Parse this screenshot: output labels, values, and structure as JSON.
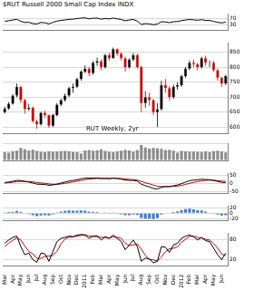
{
  "chart_data": [
    {
      "type": "line",
      "title": "$RUT Russell 2000 Small Cap Index INDX",
      "color": "#000000",
      "values": [
        55,
        58,
        63,
        67,
        55,
        47,
        48,
        40,
        38,
        47,
        45,
        38,
        48,
        56,
        60,
        63,
        67,
        68,
        72,
        75,
        76,
        70,
        74,
        75,
        68,
        72,
        70,
        75,
        70,
        66,
        58,
        63,
        66,
        56,
        35,
        40,
        38,
        33,
        37,
        52,
        50,
        46,
        52,
        53,
        59,
        63,
        66,
        64,
        61,
        65,
        60,
        60,
        54,
        48,
        44,
        50
      ],
      "ylim": [
        0,
        100
      ],
      "yticks": [
        30,
        70
      ],
      "grid": true,
      "tick_labels": "y"
    },
    {
      "type": "candlestick",
      "annotation": "RUT Weekly, 2yr",
      "open": [
        650,
        662,
        678,
        705,
        735,
        690,
        660,
        665,
        620,
        610,
        648,
        640,
        605,
        640,
        675,
        690,
        705,
        730,
        735,
        760,
        785,
        795,
        780,
        815,
        820,
        800,
        840,
        830,
        860,
        845,
        830,
        800,
        825,
        840,
        800,
        680,
        700,
        690,
        650,
        660,
        740,
        730,
        700,
        735,
        740,
        770,
        795,
        815,
        810,
        800,
        830,
        815,
        815,
        790,
        765,
        745
      ],
      "high": [
        668,
        684,
        710,
        745,
        738,
        695,
        678,
        668,
        625,
        652,
        655,
        642,
        645,
        680,
        695,
        712,
        735,
        745,
        765,
        790,
        806,
        800,
        820,
        832,
        825,
        845,
        848,
        865,
        862,
        850,
        835,
        830,
        848,
        845,
        805,
        720,
        715,
        695,
        680,
        755,
        760,
        738,
        742,
        750,
        775,
        800,
        822,
        825,
        815,
        835,
        838,
        822,
        820,
        795,
        768,
        775
      ],
      "low": [
        645,
        658,
        675,
        700,
        680,
        645,
        655,
        615,
        595,
        605,
        632,
        598,
        600,
        636,
        670,
        685,
        700,
        715,
        730,
        755,
        780,
        770,
        775,
        805,
        790,
        795,
        822,
        828,
        838,
        822,
        785,
        795,
        820,
        795,
        650,
        665,
        672,
        640,
        601,
        655,
        715,
        690,
        695,
        725,
        735,
        765,
        790,
        800,
        790,
        795,
        805,
        800,
        785,
        755,
        735,
        740
      ],
      "close": [
        662,
        678,
        705,
        735,
        690,
        660,
        665,
        620,
        610,
        648,
        640,
        605,
        640,
        675,
        690,
        705,
        730,
        735,
        760,
        785,
        795,
        780,
        815,
        820,
        800,
        840,
        830,
        860,
        845,
        830,
        800,
        825,
        840,
        800,
        680,
        700,
        690,
        650,
        660,
        740,
        730,
        700,
        735,
        740,
        770,
        795,
        815,
        810,
        800,
        830,
        815,
        815,
        790,
        765,
        745,
        770
      ],
      "colors": [
        "#000000",
        "#000000",
        "#000000",
        "#000000",
        "#cc0000",
        "#cc0000",
        "#000000",
        "#cc0000",
        "#cc0000",
        "#000000",
        "#cc0000",
        "#cc0000",
        "#000000",
        "#000000",
        "#000000",
        "#000000",
        "#000000",
        "#000000",
        "#000000",
        "#000000",
        "#000000",
        "#cc0000",
        "#000000",
        "#000000",
        "#cc0000",
        "#000000",
        "#cc0000",
        "#000000",
        "#cc0000",
        "#cc0000",
        "#cc0000",
        "#000000",
        "#000000",
        "#cc0000",
        "#cc0000",
        "#000000",
        "#cc0000",
        "#cc0000",
        "#000000",
        "#000000",
        "#cc0000",
        "#cc0000",
        "#000000",
        "#000000",
        "#000000",
        "#000000",
        "#000000",
        "#cc0000",
        "#cc0000",
        "#000000",
        "#cc0000",
        "#000000",
        "#cc0000",
        "#cc0000",
        "#cc0000",
        "#000000"
      ],
      "ylim": [
        580,
        880
      ],
      "yticks": [
        600,
        650,
        700,
        750,
        800,
        850
      ],
      "grid": true,
      "tick_labels": "y"
    },
    {
      "type": "bar",
      "color": "#8c8c8c",
      "values": [
        3.8,
        3.6,
        4.2,
        4.5,
        5.8,
        5.2,
        4.6,
        5.0,
        4.4,
        4.0,
        3.8,
        4.2,
        4.0,
        4.1,
        4.3,
        4.4,
        4.2,
        3.9,
        3.8,
        3.2,
        4.6,
        4.8,
        4.5,
        4.7,
        5.2,
        4.4,
        4.0,
        3.8,
        4.2,
        4.5,
        4.9,
        4.6,
        4.1,
        4.8,
        7.2,
        6.0,
        5.5,
        5.8,
        5.6,
        5.4,
        4.8,
        4.9,
        4.5,
        3.6,
        4.4,
        4.2,
        4.0,
        4.1,
        4.0,
        3.9,
        4.2,
        3.8,
        4.3,
        4.5,
        4.1,
        3.7
      ],
      "ylim": [
        0,
        8
      ],
      "yticks": [
        0,
        4,
        8
      ],
      "grid": true,
      "tick_labels": false
    },
    {
      "type": "line",
      "series": [
        {
          "color": "#000000",
          "values": [
            5,
            8,
            12,
            18,
            17,
            12,
            8,
            2,
            -5,
            -6,
            -7,
            -12,
            -10,
            -5,
            2,
            8,
            14,
            18,
            22,
            28,
            32,
            32,
            33,
            34,
            30,
            31,
            29,
            32,
            30,
            26,
            20,
            18,
            18,
            14,
            -5,
            -15,
            -22,
            -32,
            -35,
            -25,
            -20,
            -20,
            -15,
            -10,
            -2,
            8,
            16,
            20,
            22,
            25,
            24,
            22,
            18,
            12,
            6,
            5
          ]
        },
        {
          "color": "#cc0000",
          "values": [
            2,
            4,
            7,
            10,
            12,
            12,
            11,
            9,
            5,
            2,
            0,
            -4,
            -6,
            -6,
            -4,
            0,
            4,
            9,
            13,
            18,
            23,
            26,
            28,
            30,
            30,
            30,
            30,
            31,
            31,
            30,
            27,
            25,
            23,
            20,
            12,
            4,
            -3,
            -11,
            -18,
            -20,
            -20,
            -20,
            -19,
            -17,
            -13,
            -7,
            0,
            6,
            11,
            15,
            18,
            20,
            19,
            17,
            14,
            12
          ]
        }
      ],
      "ylim": [
        -60,
        60
      ],
      "yticks": [
        -50,
        0,
        50
      ],
      "grid": true,
      "tick_labels": "y"
    },
    {
      "type": "bar",
      "color": "#3a7bd5",
      "values": [
        3,
        4,
        5,
        8,
        5,
        0,
        -3,
        -7,
        -10,
        -8,
        -7,
        -8,
        -4,
        1,
        6,
        8,
        10,
        9,
        9,
        10,
        9,
        6,
        5,
        4,
        0,
        1,
        -1,
        1,
        -1,
        -4,
        -7,
        -7,
        -5,
        -6,
        -17,
        -19,
        -19,
        -21,
        -17,
        -5,
        0,
        0,
        4,
        7,
        11,
        15,
        16,
        14,
        11,
        10,
        6,
        2,
        -1,
        -5,
        -8,
        -7
      ],
      "ylim": [
        -25,
        25
      ],
      "yticks": [
        -20,
        0,
        20
      ],
      "grid": true,
      "tick_labels": "y"
    },
    {
      "type": "line",
      "categories": [
        "Mar",
        null,
        "Apr",
        null,
        "May",
        null,
        "Jun",
        null,
        "Jul",
        null,
        "Aug",
        null,
        "Sep",
        null,
        "Oct",
        null,
        "Nov",
        null,
        "Dec",
        null,
        "2011",
        null,
        "Feb",
        null,
        "Mar",
        null,
        "Apr",
        null,
        "May",
        null,
        "Jun",
        null,
        "Jul",
        null,
        "Aug",
        null,
        "Sep",
        null,
        "Oct",
        null,
        "Nov",
        null,
        "Dec",
        null,
        "2012",
        null,
        "Feb",
        null,
        "Mar",
        null,
        "Apr",
        null,
        "May",
        null,
        "Jun",
        null
      ],
      "series": [
        {
          "color": "#000000",
          "values": [
            70,
            80,
            88,
            92,
            60,
            35,
            40,
            20,
            12,
            40,
            38,
            15,
            45,
            75,
            85,
            88,
            92,
            90,
            95,
            97,
            95,
            85,
            92,
            93,
            80,
            90,
            85,
            95,
            85,
            75,
            50,
            65,
            80,
            60,
            15,
            25,
            22,
            10,
            15,
            60,
            58,
            42,
            65,
            70,
            85,
            92,
            95,
            90,
            80,
            88,
            78,
            75,
            55,
            35,
            20,
            40
          ]
        },
        {
          "color": "#cc0000",
          "values": [
            60,
            70,
            79,
            87,
            80,
            62,
            45,
            38,
            24,
            24,
            30,
            31,
            33,
            45,
            68,
            83,
            88,
            90,
            92,
            94,
            96,
            92,
            91,
            90,
            88,
            88,
            85,
            90,
            88,
            85,
            70,
            63,
            65,
            68,
            52,
            33,
            21,
            19,
            16,
            28,
            44,
            53,
            55,
            59,
            73,
            82,
            91,
            92,
            88,
            86,
            82,
            80,
            69,
            55,
            37,
            32
          ]
        }
      ],
      "ylim": [
        0,
        100
      ],
      "yticks": [
        20,
        80
      ],
      "grid": true
    }
  ]
}
